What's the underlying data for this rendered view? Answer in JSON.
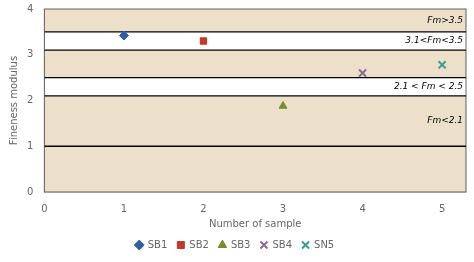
{
  "chart_data": {
    "type": "scatter",
    "xlabel": "Number of sample",
    "ylabel": "Fineness modulus",
    "series": [
      {
        "name": "SB1",
        "x": [
          1
        ],
        "values": [
          3.42
        ],
        "marker": "diamond",
        "color": "#2e5fa3"
      },
      {
        "name": "SB2",
        "x": [
          2
        ],
        "values": [
          3.3
        ],
        "marker": "square",
        "color": "#c0392b"
      },
      {
        "name": "SB3",
        "x": [
          3
        ],
        "values": [
          1.88
        ],
        "marker": "triangle",
        "color": "#7a8c2a"
      },
      {
        "name": "SB4",
        "x": [
          4
        ],
        "values": [
          2.6
        ],
        "marker": "x",
        "color": "#8b6a8b"
      },
      {
        "name": "SN5",
        "x": [
          5
        ],
        "values": [
          2.78
        ],
        "marker": "x",
        "color": "#3a9a9a"
      }
    ],
    "hlines": [
      3.5,
      3.1,
      2.5,
      2.1,
      1.0
    ],
    "bands": [
      {
        "y0": 3.1,
        "y1": 3.5
      },
      {
        "y0": 2.1,
        "y1": 2.5
      }
    ],
    "annotations": [
      {
        "text": "Fm>3.5",
        "y": 3.75
      },
      {
        "text": "3.1<Fm<3.5",
        "y": 3.3
      },
      {
        "text": "2.1 < Fm < 2.5",
        "y": 2.3
      },
      {
        "text": "Fm<2.1",
        "y": 1.55
      }
    ],
    "xlim": [
      0,
      5.3
    ],
    "ylim": [
      0,
      4
    ],
    "xticks": [
      0,
      1,
      2,
      3,
      4,
      5
    ],
    "yticks": [
      0,
      1,
      2,
      3,
      4
    ],
    "grid": false,
    "legend": "bottom"
  }
}
